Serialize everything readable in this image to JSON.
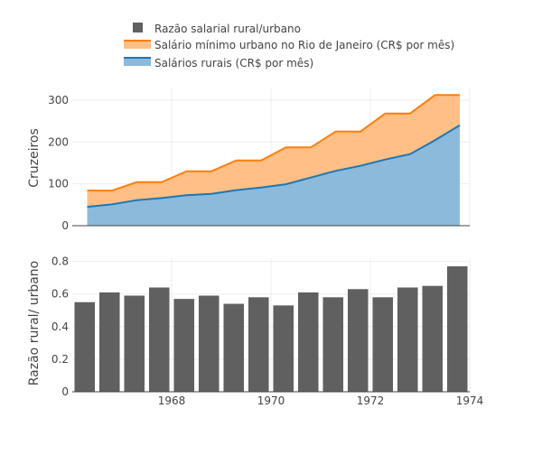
{
  "chart_data": [
    {
      "type": "area",
      "x": [
        1966.3,
        1966.8,
        1967.3,
        1967.8,
        1968.3,
        1968.8,
        1969.3,
        1969.8,
        1970.3,
        1970.8,
        1971.3,
        1971.8,
        1972.3,
        1972.8,
        1973.3,
        1973.8
      ],
      "series": [
        {
          "name": "Salários rurais (CR$ por mês)",
          "color": "#1f77b4",
          "values": [
            45,
            51,
            61,
            66,
            73,
            76,
            85,
            91,
            99,
            115,
            131,
            143,
            158,
            171,
            204,
            240
          ]
        },
        {
          "name": "Salário mínimo urbano no Rio de Janeiro (CR$ por mês)",
          "color": "#ff7f0e",
          "values": [
            84,
            84,
            104,
            104,
            130,
            130,
            156,
            156,
            187,
            187,
            225,
            225,
            268,
            268,
            312,
            312
          ]
        }
      ],
      "ylabel": "Cruzeiros",
      "yticks": [
        "0",
        "100",
        "200",
        "300"
      ],
      "ylim": [
        0,
        330
      ],
      "xlim": [
        1966.0,
        1974.0
      ],
      "grid": true
    },
    {
      "type": "bar",
      "x": [
        1966.25,
        1966.75,
        1967.25,
        1967.75,
        1968.25,
        1968.75,
        1969.25,
        1969.75,
        1970.25,
        1970.75,
        1971.25,
        1971.75,
        1972.25,
        1972.75,
        1973.25,
        1973.75
      ],
      "series": [
        {
          "name": "Razão salarial rural/urbano",
          "color": "#606060",
          "values": [
            0.55,
            0.61,
            0.59,
            0.64,
            0.57,
            0.59,
            0.54,
            0.58,
            0.53,
            0.61,
            0.58,
            0.63,
            0.58,
            0.64,
            0.65,
            0.77
          ]
        }
      ],
      "ylabel": "Razão rural/ urbano",
      "yticks": [
        "0",
        "0.2",
        "0.4",
        "0.6",
        "0.8"
      ],
      "ylim": [
        0,
        0.82
      ],
      "xticks": [
        "1968",
        "1970",
        "1972",
        "1974"
      ],
      "xlim": [
        1966.0,
        1974.0
      ],
      "grid": true
    }
  ],
  "legend": {
    "items": [
      {
        "label": "Razão salarial rural/urbano",
        "color": "#606060",
        "icon": "square-marker-icon"
      },
      {
        "label": "Salário mínimo urbano no Rio de Janeiro (CR$ por mês)",
        "color": "#ff7f0e",
        "icon": "area-swatch-icon"
      },
      {
        "label": "Salários rurais (CR$ por mês)",
        "color": "#1f77b4",
        "icon": "area-swatch-icon"
      }
    ]
  }
}
